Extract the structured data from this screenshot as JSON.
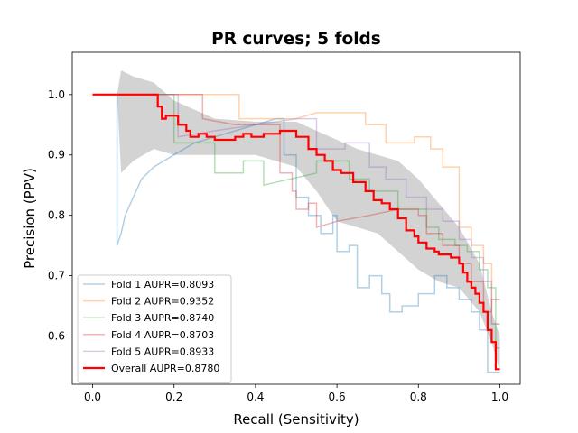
{
  "chart_data": {
    "type": "line",
    "title": "PR curves; 5 folds",
    "xlabel": "Recall (Sensitivity)",
    "ylabel": "Precision (PPV)",
    "xlim": [
      -0.05,
      1.05
    ],
    "ylim": [
      0.52,
      1.07
    ],
    "xticks": [
      "0.0",
      "0.2",
      "0.4",
      "0.6",
      "0.8",
      "1.0"
    ],
    "yticks": [
      "0.6",
      "0.7",
      "0.8",
      "0.9",
      "1.0"
    ],
    "legend_position": "lower-left",
    "std_band": {
      "color": "#d3d3d3",
      "x": [
        0.0,
        0.06,
        0.07,
        0.1,
        0.15,
        0.2,
        0.3,
        0.4,
        0.5,
        0.55,
        0.6,
        0.65,
        0.7,
        0.75,
        0.8,
        0.85,
        0.9,
        0.95,
        0.98,
        1.0
      ],
      "upper": [
        1.0,
        1.0,
        1.04,
        1.03,
        1.02,
        0.99,
        0.96,
        0.955,
        0.955,
        0.94,
        0.925,
        0.91,
        0.9,
        0.89,
        0.86,
        0.82,
        0.78,
        0.72,
        0.64,
        0.6
      ],
      "lower": [
        1.0,
        1.0,
        0.87,
        0.89,
        0.91,
        0.9,
        0.9,
        0.9,
        0.88,
        0.84,
        0.79,
        0.78,
        0.77,
        0.74,
        0.71,
        0.69,
        0.68,
        0.64,
        0.59,
        0.54
      ]
    },
    "series": [
      {
        "name": "Fold 1 AUPR=0.8093",
        "color": "#1f77b4",
        "x": [
          0.0,
          0.06,
          0.06,
          0.06,
          0.07,
          0.08,
          0.1,
          0.12,
          0.15,
          0.2,
          0.25,
          0.3,
          0.35,
          0.4,
          0.45,
          0.47,
          0.47,
          0.5,
          0.5,
          0.53,
          0.53,
          0.56,
          0.56,
          0.59,
          0.59,
          0.6,
          0.6,
          0.63,
          0.63,
          0.65,
          0.65,
          0.68,
          0.68,
          0.71,
          0.71,
          0.73,
          0.73,
          0.76,
          0.76,
          0.8,
          0.8,
          0.84,
          0.84,
          0.87,
          0.87,
          0.9,
          0.9,
          0.93,
          0.93,
          0.95,
          0.95,
          0.97,
          0.97,
          1.0
        ],
        "y": [
          1.0,
          1.0,
          0.98,
          0.75,
          0.77,
          0.8,
          0.83,
          0.86,
          0.88,
          0.9,
          0.92,
          0.93,
          0.94,
          0.95,
          0.96,
          0.96,
          0.9,
          0.9,
          0.83,
          0.83,
          0.8,
          0.8,
          0.77,
          0.77,
          0.8,
          0.8,
          0.74,
          0.74,
          0.75,
          0.75,
          0.68,
          0.68,
          0.7,
          0.7,
          0.67,
          0.67,
          0.64,
          0.64,
          0.65,
          0.65,
          0.67,
          0.67,
          0.7,
          0.7,
          0.68,
          0.68,
          0.66,
          0.66,
          0.64,
          0.64,
          0.61,
          0.61,
          0.54,
          0.54
        ]
      },
      {
        "name": "Fold 2 AUPR=0.9352",
        "color": "#ff7f0e",
        "x": [
          0.0,
          0.36,
          0.36,
          0.45,
          0.5,
          0.55,
          0.6,
          0.67,
          0.67,
          0.72,
          0.72,
          0.79,
          0.79,
          0.83,
          0.83,
          0.86,
          0.86,
          0.9,
          0.9,
          0.93,
          0.93,
          0.96,
          0.96,
          0.98,
          0.98,
          1.0
        ],
        "y": [
          1.0,
          1.0,
          0.96,
          0.96,
          0.96,
          0.97,
          0.97,
          0.97,
          0.95,
          0.95,
          0.92,
          0.92,
          0.93,
          0.93,
          0.91,
          0.91,
          0.88,
          0.88,
          0.78,
          0.78,
          0.75,
          0.75,
          0.72,
          0.72,
          0.62,
          0.62
        ]
      },
      {
        "name": "Fold 3 AUPR=0.8740",
        "color": "#2ca02c",
        "x": [
          0.0,
          0.2,
          0.2,
          0.3,
          0.3,
          0.37,
          0.37,
          0.42,
          0.42,
          0.55,
          0.55,
          0.63,
          0.63,
          0.68,
          0.68,
          0.75,
          0.75,
          0.82,
          0.82,
          0.85,
          0.85,
          0.89,
          0.89,
          0.92,
          0.92,
          0.95,
          0.95,
          0.97,
          0.97,
          0.99,
          0.99,
          1.0
        ],
        "y": [
          1.0,
          1.0,
          0.92,
          0.92,
          0.87,
          0.87,
          0.89,
          0.89,
          0.85,
          0.87,
          0.89,
          0.89,
          0.86,
          0.86,
          0.84,
          0.84,
          0.81,
          0.81,
          0.78,
          0.78,
          0.76,
          0.76,
          0.75,
          0.75,
          0.74,
          0.74,
          0.71,
          0.71,
          0.68,
          0.68,
          0.58,
          0.58
        ]
      },
      {
        "name": "Fold 4 AUPR=0.8703",
        "color": "#d62728",
        "x": [
          0.0,
          0.27,
          0.27,
          0.35,
          0.46,
          0.46,
          0.49,
          0.49,
          0.5,
          0.5,
          0.53,
          0.53,
          0.55,
          0.55,
          0.6,
          0.68,
          0.75,
          0.8,
          0.8,
          0.82,
          0.82,
          0.86,
          0.86,
          0.9,
          0.9,
          0.93,
          0.93,
          0.96,
          0.96,
          0.98,
          0.98,
          1.0
        ],
        "y": [
          1.0,
          1.0,
          0.96,
          0.95,
          0.95,
          0.87,
          0.87,
          0.84,
          0.84,
          0.81,
          0.81,
          0.82,
          0.82,
          0.78,
          0.79,
          0.8,
          0.81,
          0.81,
          0.8,
          0.8,
          0.77,
          0.77,
          0.75,
          0.75,
          0.72,
          0.72,
          0.69,
          0.69,
          0.64,
          0.64,
          0.66,
          0.66
        ]
      },
      {
        "name": "Fold 5 AUPR=0.8933",
        "color": "#9467bd",
        "x": [
          0.0,
          0.21,
          0.21,
          0.3,
          0.4,
          0.5,
          0.55,
          0.55,
          0.62,
          0.62,
          0.68,
          0.68,
          0.72,
          0.72,
          0.77,
          0.77,
          0.82,
          0.82,
          0.86,
          0.86,
          0.9,
          0.9,
          0.93,
          0.93,
          0.96,
          0.96,
          0.98,
          0.98,
          1.0
        ],
        "y": [
          1.0,
          1.0,
          0.93,
          0.94,
          0.95,
          0.96,
          0.96,
          0.91,
          0.91,
          0.92,
          0.92,
          0.88,
          0.88,
          0.86,
          0.86,
          0.83,
          0.83,
          0.81,
          0.81,
          0.79,
          0.79,
          0.76,
          0.76,
          0.73,
          0.73,
          0.69,
          0.69,
          0.62,
          0.62
        ]
      },
      {
        "name": "Overall AUPR=0.8780",
        "color": "#ff0000",
        "x": [
          0.0,
          0.16,
          0.16,
          0.17,
          0.17,
          0.18,
          0.18,
          0.21,
          0.21,
          0.23,
          0.23,
          0.24,
          0.24,
          0.26,
          0.26,
          0.28,
          0.28,
          0.3,
          0.3,
          0.35,
          0.35,
          0.37,
          0.37,
          0.39,
          0.39,
          0.42,
          0.42,
          0.46,
          0.46,
          0.5,
          0.5,
          0.53,
          0.53,
          0.55,
          0.55,
          0.57,
          0.57,
          0.59,
          0.59,
          0.61,
          0.61,
          0.64,
          0.64,
          0.67,
          0.67,
          0.69,
          0.69,
          0.71,
          0.71,
          0.73,
          0.73,
          0.75,
          0.75,
          0.77,
          0.77,
          0.79,
          0.79,
          0.8,
          0.8,
          0.82,
          0.82,
          0.84,
          0.84,
          0.85,
          0.85,
          0.88,
          0.88,
          0.9,
          0.9,
          0.91,
          0.91,
          0.92,
          0.92,
          0.93,
          0.93,
          0.94,
          0.94,
          0.95,
          0.95,
          0.96,
          0.96,
          0.97,
          0.97,
          0.98,
          0.98,
          0.99,
          0.99,
          1.0
        ],
        "y": [
          1.0,
          1.0,
          0.98,
          0.98,
          0.96,
          0.96,
          0.965,
          0.965,
          0.95,
          0.95,
          0.94,
          0.94,
          0.93,
          0.93,
          0.935,
          0.935,
          0.93,
          0.93,
          0.925,
          0.925,
          0.93,
          0.93,
          0.935,
          0.935,
          0.93,
          0.93,
          0.935,
          0.935,
          0.94,
          0.94,
          0.93,
          0.93,
          0.91,
          0.91,
          0.9,
          0.9,
          0.89,
          0.89,
          0.875,
          0.875,
          0.87,
          0.87,
          0.855,
          0.855,
          0.84,
          0.84,
          0.825,
          0.825,
          0.82,
          0.82,
          0.81,
          0.81,
          0.795,
          0.795,
          0.775,
          0.775,
          0.765,
          0.765,
          0.755,
          0.755,
          0.745,
          0.745,
          0.74,
          0.74,
          0.735,
          0.735,
          0.73,
          0.73,
          0.72,
          0.72,
          0.705,
          0.705,
          0.69,
          0.69,
          0.68,
          0.68,
          0.67,
          0.67,
          0.655,
          0.655,
          0.64,
          0.64,
          0.61,
          0.61,
          0.59,
          0.59,
          0.545,
          0.545
        ]
      }
    ]
  }
}
